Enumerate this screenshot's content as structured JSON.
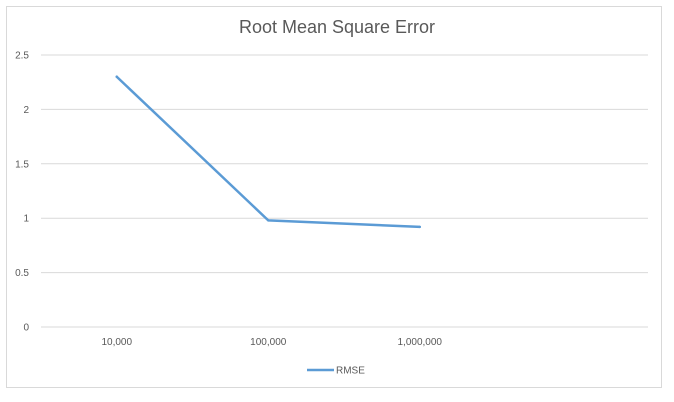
{
  "chart_data": {
    "type": "line",
    "title": "Root Mean Square Error",
    "xlabel": "",
    "ylabel": "",
    "categories": [
      "10,000",
      "100,000",
      "1,000,000"
    ],
    "series": [
      {
        "name": "RMSE",
        "values": [
          2.3,
          0.98,
          0.92
        ],
        "color": "#5b9bd5"
      }
    ],
    "ylim": [
      0,
      2.5
    ],
    "yticks": [
      "0",
      "0.5",
      "1",
      "1.5",
      "2",
      "2.5"
    ],
    "grid": true,
    "legend_position": "bottom"
  }
}
